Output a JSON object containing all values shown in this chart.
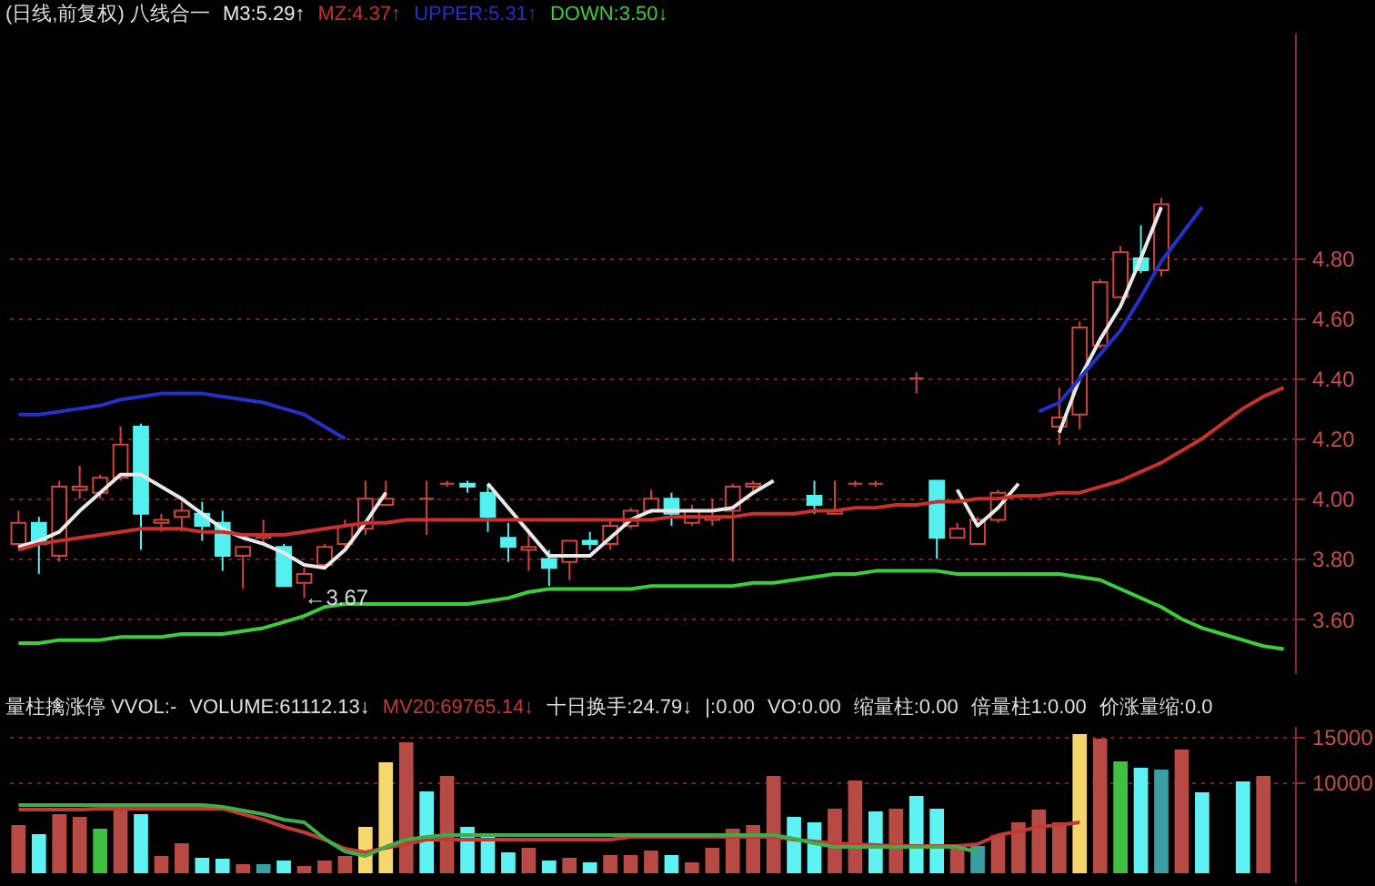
{
  "chart_data": [
    {
      "type": "candlestick",
      "title": "(日线,前复权) 八线合一",
      "categories": [
        null,
        null,
        null,
        null,
        null,
        null,
        null,
        null,
        null,
        null,
        null,
        null,
        null,
        null,
        null,
        null,
        null,
        null,
        null,
        null,
        null,
        null,
        null,
        null,
        null,
        null,
        null,
        null,
        null,
        null,
        null,
        null,
        null,
        null,
        null,
        null,
        null,
        null,
        null,
        null,
        null,
        null,
        null,
        null,
        null,
        null,
        null,
        null,
        null,
        null,
        null,
        null,
        null,
        null,
        null,
        null,
        null,
        null,
        null,
        null,
        null,
        null,
        null
      ],
      "ohlc": [
        [
          3.85,
          3.96,
          3.83,
          3.92
        ],
        [
          3.92,
          3.94,
          3.75,
          3.85
        ],
        [
          3.81,
          4.06,
          3.79,
          4.04
        ],
        [
          4.03,
          4.11,
          4.0,
          4.04
        ],
        [
          4.02,
          4.08,
          4.0,
          4.07
        ],
        [
          4.07,
          4.24,
          4.06,
          4.18
        ],
        [
          4.24,
          4.25,
          3.83,
          3.95
        ],
        [
          3.92,
          3.95,
          3.89,
          3.93
        ],
        [
          3.94,
          3.99,
          3.89,
          3.96
        ],
        [
          3.95,
          3.99,
          3.86,
          3.91
        ],
        [
          3.92,
          3.96,
          3.76,
          3.81
        ],
        [
          3.81,
          3.84,
          3.7,
          3.84
        ],
        [
          3.87,
          3.93,
          3.85,
          3.88
        ],
        [
          3.84,
          3.85,
          3.71,
          3.71
        ],
        [
          3.72,
          3.77,
          3.67,
          3.75
        ],
        [
          3.78,
          3.85,
          3.78,
          3.84
        ],
        [
          3.85,
          3.93,
          3.84,
          3.91
        ],
        [
          3.9,
          4.06,
          3.88,
          4.0
        ],
        [
          3.98,
          4.06,
          3.98,
          4.0
        ],
        null,
        [
          4.0,
          4.06,
          3.88,
          4.0
        ],
        [
          4.05,
          4.06,
          4.04,
          4.05
        ],
        [
          4.05,
          4.06,
          4.02,
          4.04
        ],
        [
          4.02,
          4.05,
          3.89,
          3.94
        ],
        [
          3.87,
          3.92,
          3.79,
          3.84
        ],
        [
          3.83,
          3.9,
          3.76,
          3.84
        ],
        [
          3.8,
          3.83,
          3.71,
          3.77
        ],
        [
          3.79,
          3.86,
          3.73,
          3.86
        ],
        [
          3.86,
          3.89,
          3.83,
          3.85
        ],
        [
          3.85,
          3.93,
          3.83,
          3.91
        ],
        [
          3.91,
          3.97,
          3.9,
          3.96
        ],
        [
          3.96,
          4.03,
          3.95,
          4.0
        ],
        [
          4.0,
          4.02,
          3.91,
          3.95
        ],
        [
          3.92,
          3.98,
          3.91,
          3.96
        ],
        [
          3.93,
          4.0,
          3.91,
          3.94
        ],
        [
          3.96,
          4.05,
          3.79,
          4.04
        ],
        [
          4.04,
          4.06,
          4.02,
          4.05
        ],
        null,
        null,
        [
          4.01,
          4.06,
          3.95,
          3.98
        ],
        [
          3.95,
          4.06,
          3.95,
          3.96
        ],
        [
          4.05,
          4.06,
          4.04,
          4.05
        ],
        [
          4.05,
          4.06,
          4.04,
          4.05
        ],
        null,
        [
          4.4,
          4.42,
          4.35,
          4.4
        ],
        [
          4.06,
          4.06,
          3.8,
          3.87
        ],
        [
          3.87,
          3.92,
          3.87,
          3.9
        ],
        [
          3.85,
          3.94,
          3.85,
          3.93
        ],
        [
          3.93,
          4.03,
          3.92,
          4.02
        ],
        null,
        null,
        [
          4.24,
          4.37,
          4.18,
          4.27
        ],
        [
          4.28,
          4.59,
          4.23,
          4.57
        ],
        [
          4.51,
          4.73,
          4.5,
          4.72
        ],
        [
          4.67,
          4.84,
          4.67,
          4.82
        ],
        [
          4.8,
          4.91,
          4.75,
          4.76
        ],
        [
          4.76,
          5.0,
          4.74,
          4.98
        ],
        null,
        null,
        null,
        null,
        null,
        null
      ],
      "series": [
        {
          "type": "line",
          "name": "M3:5.29↑",
          "color": "#e8e8e8",
          "values": [
            3.84,
            3.86,
            3.89,
            3.96,
            4.02,
            4.08,
            4.08,
            4.04,
            4.0,
            3.95,
            3.9,
            3.87,
            3.85,
            3.82,
            3.78,
            3.77,
            3.83,
            3.92,
            4.02,
            null,
            null,
            null,
            null,
            4.05,
            3.97,
            3.89,
            3.81,
            3.81,
            3.81,
            3.87,
            3.93,
            3.96,
            3.96,
            3.96,
            3.96,
            3.97,
            4.02,
            4.06,
            null,
            null,
            null,
            null,
            null,
            null,
            null,
            null,
            4.03,
            3.91,
            3.97,
            4.05,
            null,
            4.22,
            4.4,
            4.53,
            4.64,
            4.8,
            4.97,
            null,
            null,
            null,
            null,
            null,
            null
          ]
        },
        {
          "type": "line",
          "name": "MZ:4.37↑",
          "color": "#c8302c",
          "values": [
            3.83,
            3.85,
            3.86,
            3.87,
            3.88,
            3.89,
            3.9,
            3.9,
            3.9,
            3.89,
            3.89,
            3.88,
            3.88,
            3.88,
            3.89,
            3.9,
            3.91,
            3.92,
            3.92,
            3.93,
            3.93,
            3.93,
            3.93,
            3.93,
            3.93,
            3.93,
            3.93,
            3.93,
            3.93,
            3.93,
            3.93,
            3.93,
            3.94,
            3.94,
            3.94,
            3.94,
            3.95,
            3.95,
            3.95,
            3.96,
            3.96,
            3.97,
            3.97,
            3.98,
            3.98,
            3.99,
            3.99,
            4.0,
            4.0,
            4.01,
            4.01,
            4.02,
            4.02,
            4.04,
            4.06,
            4.09,
            4.12,
            4.16,
            4.2,
            4.25,
            4.3,
            4.34,
            4.37
          ]
        },
        {
          "type": "line",
          "name": "UPPER:5.31↑",
          "color": "#2430c8",
          "values": [
            4.28,
            4.28,
            4.29,
            4.3,
            4.31,
            4.33,
            4.34,
            4.35,
            4.35,
            4.35,
            4.34,
            4.33,
            4.32,
            4.3,
            4.28,
            4.24,
            4.2,
            null,
            null,
            null,
            null,
            null,
            null,
            null,
            null,
            null,
            null,
            null,
            null,
            null,
            null,
            null,
            null,
            null,
            null,
            null,
            null,
            null,
            null,
            null,
            null,
            null,
            null,
            null,
            null,
            null,
            null,
            null,
            null,
            null,
            4.29,
            4.32,
            4.4,
            4.48,
            4.56,
            4.67,
            4.79,
            4.88,
            4.97,
            null,
            null,
            null,
            null
          ]
        },
        {
          "type": "line",
          "name": "DOWN:3.50↓",
          "color": "#3ccc3c",
          "values": [
            3.52,
            3.52,
            3.53,
            3.53,
            3.53,
            3.54,
            3.54,
            3.54,
            3.55,
            3.55,
            3.55,
            3.56,
            3.57,
            3.59,
            3.61,
            3.64,
            3.65,
            3.65,
            3.65,
            3.65,
            3.65,
            3.65,
            3.65,
            3.66,
            3.67,
            3.69,
            3.7,
            3.7,
            3.7,
            3.7,
            3.7,
            3.71,
            3.71,
            3.71,
            3.71,
            3.71,
            3.72,
            3.72,
            3.73,
            3.74,
            3.75,
            3.75,
            3.76,
            3.76,
            3.76,
            3.76,
            3.75,
            3.75,
            3.75,
            3.75,
            3.75,
            3.75,
            3.74,
            3.73,
            3.7,
            3.67,
            3.64,
            3.6,
            3.57,
            3.55,
            3.53,
            3.51,
            3.5
          ]
        }
      ],
      "ylim": [
        3.42,
        5.55
      ],
      "yticks": [
        {
          "value": 3.6,
          "label": "3.60"
        },
        {
          "value": 3.8,
          "label": "3.80"
        },
        {
          "value": 4.0,
          "label": "4.00"
        },
        {
          "value": 4.2,
          "label": "4.20"
        },
        {
          "value": 4.4,
          "label": "4.40"
        },
        {
          "value": 4.6,
          "label": "4.60"
        },
        {
          "value": 4.8,
          "label": "4.80"
        }
      ],
      "grid": "y",
      "legend": "top left",
      "annotations": [
        {
          "text": "←3.67",
          "y": 3.67
        }
      ]
    },
    {
      "type": "bar",
      "title": "量柱擒涨停 VVOL:-",
      "categories": [
        null,
        null,
        null,
        null,
        null,
        null,
        null,
        null,
        null,
        null,
        null,
        null,
        null,
        null,
        null,
        null,
        null,
        null,
        null,
        null,
        null,
        null,
        null,
        null,
        null,
        null,
        null,
        null,
        null,
        null,
        null,
        null,
        null,
        null,
        null,
        null,
        null,
        null,
        null,
        null,
        null,
        null,
        null,
        null,
        null,
        null,
        null,
        null,
        null,
        null,
        null,
        null,
        null,
        null,
        null,
        null,
        null,
        null,
        null,
        null,
        null,
        null,
        null
      ],
      "series": [
        {
          "type": "bar",
          "name": "VOLUME:61112.13↓",
          "color": "#e0e0e0",
          "values": [
            5300,
            4300,
            6500,
            6200,
            4900,
            7000,
            6500,
            1900,
            3300,
            1700,
            1600,
            1000,
            1000,
            1400,
            800,
            1400,
            1900,
            5100,
            12200,
            14400,
            9000,
            10700,
            5100,
            4200,
            2300,
            2800,
            1400,
            1700,
            1200,
            2000,
            2000,
            2500,
            2000,
            1200,
            2800,
            4900,
            5300,
            10700,
            6200,
            5600,
            7100,
            10200,
            6800,
            7100,
            8500,
            7100,
            3000,
            3000,
            4200,
            5600,
            7000,
            5600,
            15300,
            14800,
            12300,
            11600,
            11400,
            13600,
            8900,
            null,
            10100,
            10700,
            null
          ],
          "colors": [
            "#b84a45",
            "#5ef2f2",
            "#b84a45",
            "#b84a45",
            "#40c040",
            "#b84a45",
            "#5ef2f2",
            "#b84a45",
            "#b84a45",
            "#5ef2f2",
            "#5ef2f2",
            "#b84a45",
            "#3a9ea5",
            "#5ef2f2",
            "#b84a45",
            "#b84a45",
            "#b84a45",
            "#f5d76e",
            "#f5d76e",
            "#b84a45",
            "#5ef2f2",
            "#b84a45",
            "#5ef2f2",
            "#5ef2f2",
            "#5ef2f2",
            "#b84a45",
            "#5ef2f2",
            "#b84a45",
            "#5ef2f2",
            "#b84a45",
            "#b84a45",
            "#b84a45",
            "#5ef2f2",
            "#b84a45",
            "#b84a45",
            "#b84a45",
            "#b84a45",
            "#b84a45",
            "#5ef2f2",
            "#5ef2f2",
            "#b84a45",
            "#b84a45",
            "#5ef2f2",
            "#b84a45",
            "#5ef2f2",
            "#5ef2f2",
            "#b84a45",
            "#3a9ea5",
            "#b84a45",
            "#b84a45",
            "#b84a45",
            "#b84a45",
            "#f5d76e",
            "#b84a45",
            "#40c040",
            "#5ef2f2",
            "#3a9ea5",
            "#b84a45",
            "#5ef2f2",
            null,
            "#5ef2f2",
            "#b84a45",
            null
          ]
        },
        {
          "type": "line",
          "name": "MV20:69765.14↓",
          "color": "#c03a36",
          "values": [
            7000,
            7000,
            7000,
            7000,
            7100,
            7100,
            7100,
            7100,
            7100,
            7100,
            7100,
            6500,
            5900,
            5100,
            4500,
            3700,
            2700,
            2300,
            2800,
            3200,
            3700,
            3700,
            3700,
            3700,
            3700,
            3700,
            3700,
            3700,
            3700,
            3700,
            4000,
            4000,
            4000,
            4000,
            4000,
            4000,
            4000,
            4000,
            3700,
            3500,
            3300,
            3200,
            3100,
            3000,
            3000,
            3000,
            3000,
            3200,
            4200,
            4600,
            5100,
            5300,
            5600,
            null,
            null,
            null,
            null,
            null,
            null,
            null,
            null,
            null,
            null
          ]
        },
        {
          "type": "line",
          "color": "#3fae4a",
          "values": [
            7500,
            7500,
            7500,
            7500,
            7500,
            7500,
            7500,
            7500,
            7500,
            7500,
            7300,
            6900,
            6500,
            5900,
            5600,
            3800,
            2400,
            1900,
            2900,
            3700,
            4000,
            4200,
            4200,
            4200,
            4200,
            4200,
            4200,
            4200,
            4200,
            4200,
            4200,
            4200,
            4200,
            4200,
            4200,
            4200,
            4200,
            4200,
            3800,
            3300,
            2900,
            2900,
            2900,
            2900,
            2900,
            2900,
            2900,
            2300,
            null,
            null,
            null,
            null,
            null,
            null,
            null,
            null,
            null,
            null,
            null,
            null,
            null,
            null,
            null
          ]
        }
      ],
      "ylim": [
        -1000,
        16200
      ],
      "yticks": [
        15000,
        10000
      ],
      "grid": "y",
      "legend": "top left",
      "annotations": [
        "十日换手:24.79↓",
        "|:0.00",
        "VO:0.00",
        "缩量柱:0.00",
        "倍量柱1:0.00",
        "价涨量缩:0.0"
      ]
    }
  ]
}
